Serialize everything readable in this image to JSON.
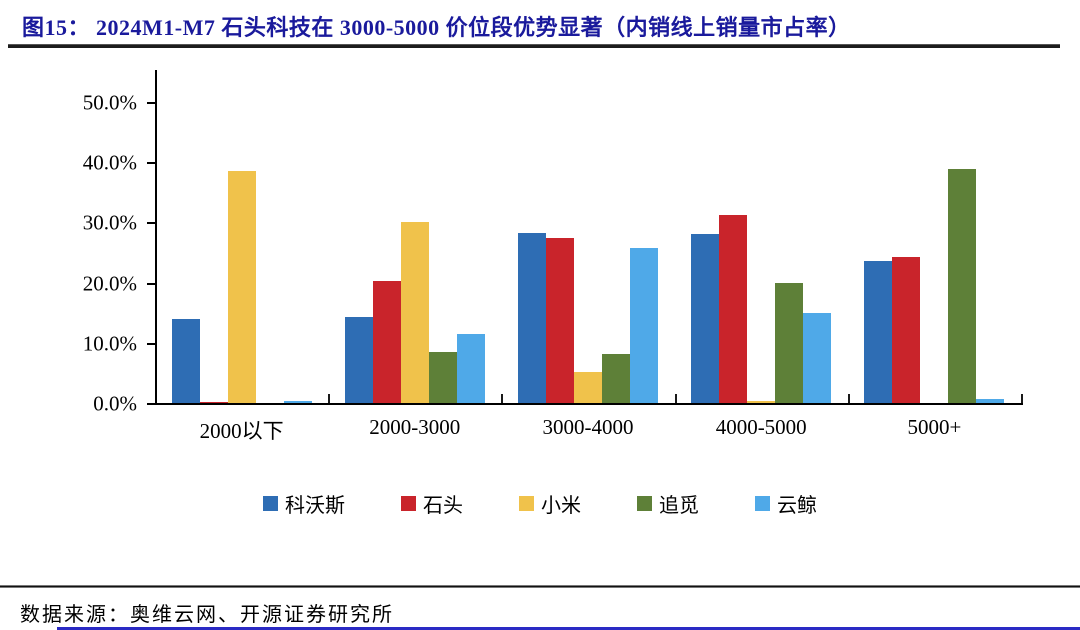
{
  "title": "图15： 2024M1-M7 石头科技在 3000-5000 价位段优势显著（内销线上销量市占率）",
  "footer": {
    "source": "数据来源：奥维云网、开源证券研究所"
  },
  "accent_colors": {
    "title_navy": "#1a1a9c",
    "rule_black": "#1c1c1c",
    "bottom_line_blue": "#2a2ac4"
  },
  "chart_data": {
    "type": "bar",
    "title": "内销线上销量市占率 by 价位段",
    "categories": [
      "2000以下",
      "2000-3000",
      "3000-4000",
      "4000-5000",
      "5000+"
    ],
    "series": [
      {
        "name": "科沃斯",
        "color": "#2E6DB4",
        "values": [
          14.0,
          14.3,
          28.3,
          28.0,
          23.5
        ]
      },
      {
        "name": "石头",
        "color": "#C9242B",
        "values": [
          0.1,
          20.2,
          27.4,
          31.3,
          24.2
        ]
      },
      {
        "name": "小米",
        "color": "#F0C24B",
        "values": [
          38.5,
          30.1,
          5.2,
          0.3,
          0
        ]
      },
      {
        "name": "追觅",
        "color": "#5E8038",
        "values": [
          0,
          8.5,
          8.1,
          19.9,
          38.9
        ]
      },
      {
        "name": "云鲸",
        "color": "#4FA9E8",
        "values": [
          0.3,
          11.5,
          25.8,
          14.9,
          0.6
        ]
      }
    ],
    "ylim": [
      0,
      55.3
    ],
    "yticks": [
      0,
      10,
      20,
      30,
      40,
      50
    ],
    "ytick_labels": [
      "0.0%",
      "10.0%",
      "20.0%",
      "30.0%",
      "40.0%",
      "50.0%"
    ],
    "xlabel": "",
    "ylabel": "",
    "grid": false,
    "legend_position": "bottom"
  }
}
